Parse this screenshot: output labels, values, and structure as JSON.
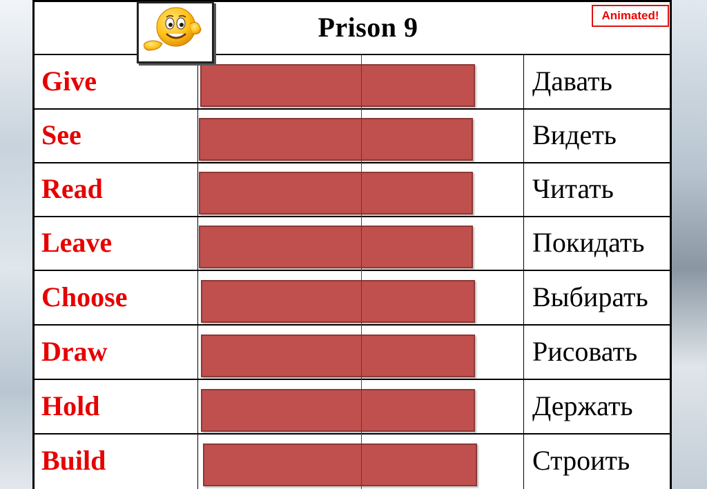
{
  "title": "Prison 9",
  "badge": "Animated!",
  "colors": {
    "english_text": "#e60000",
    "cover_box": "#c0504d",
    "badge_border": "#dd1111"
  },
  "icons": {
    "corner": "smiley-face-icon"
  },
  "rows": [
    {
      "english": "Give",
      "russian": "Давать"
    },
    {
      "english": "See",
      "russian": "Видеть"
    },
    {
      "english": "Read",
      "russian": "Читать"
    },
    {
      "english": "Leave",
      "russian": "Покидать"
    },
    {
      "english": "Choose",
      "russian": "Выбирать"
    },
    {
      "english": "Draw",
      "russian": "Рисовать"
    },
    {
      "english": "Hold",
      "russian": "Держать"
    },
    {
      "english": "Build",
      "russian": "Строить"
    }
  ]
}
